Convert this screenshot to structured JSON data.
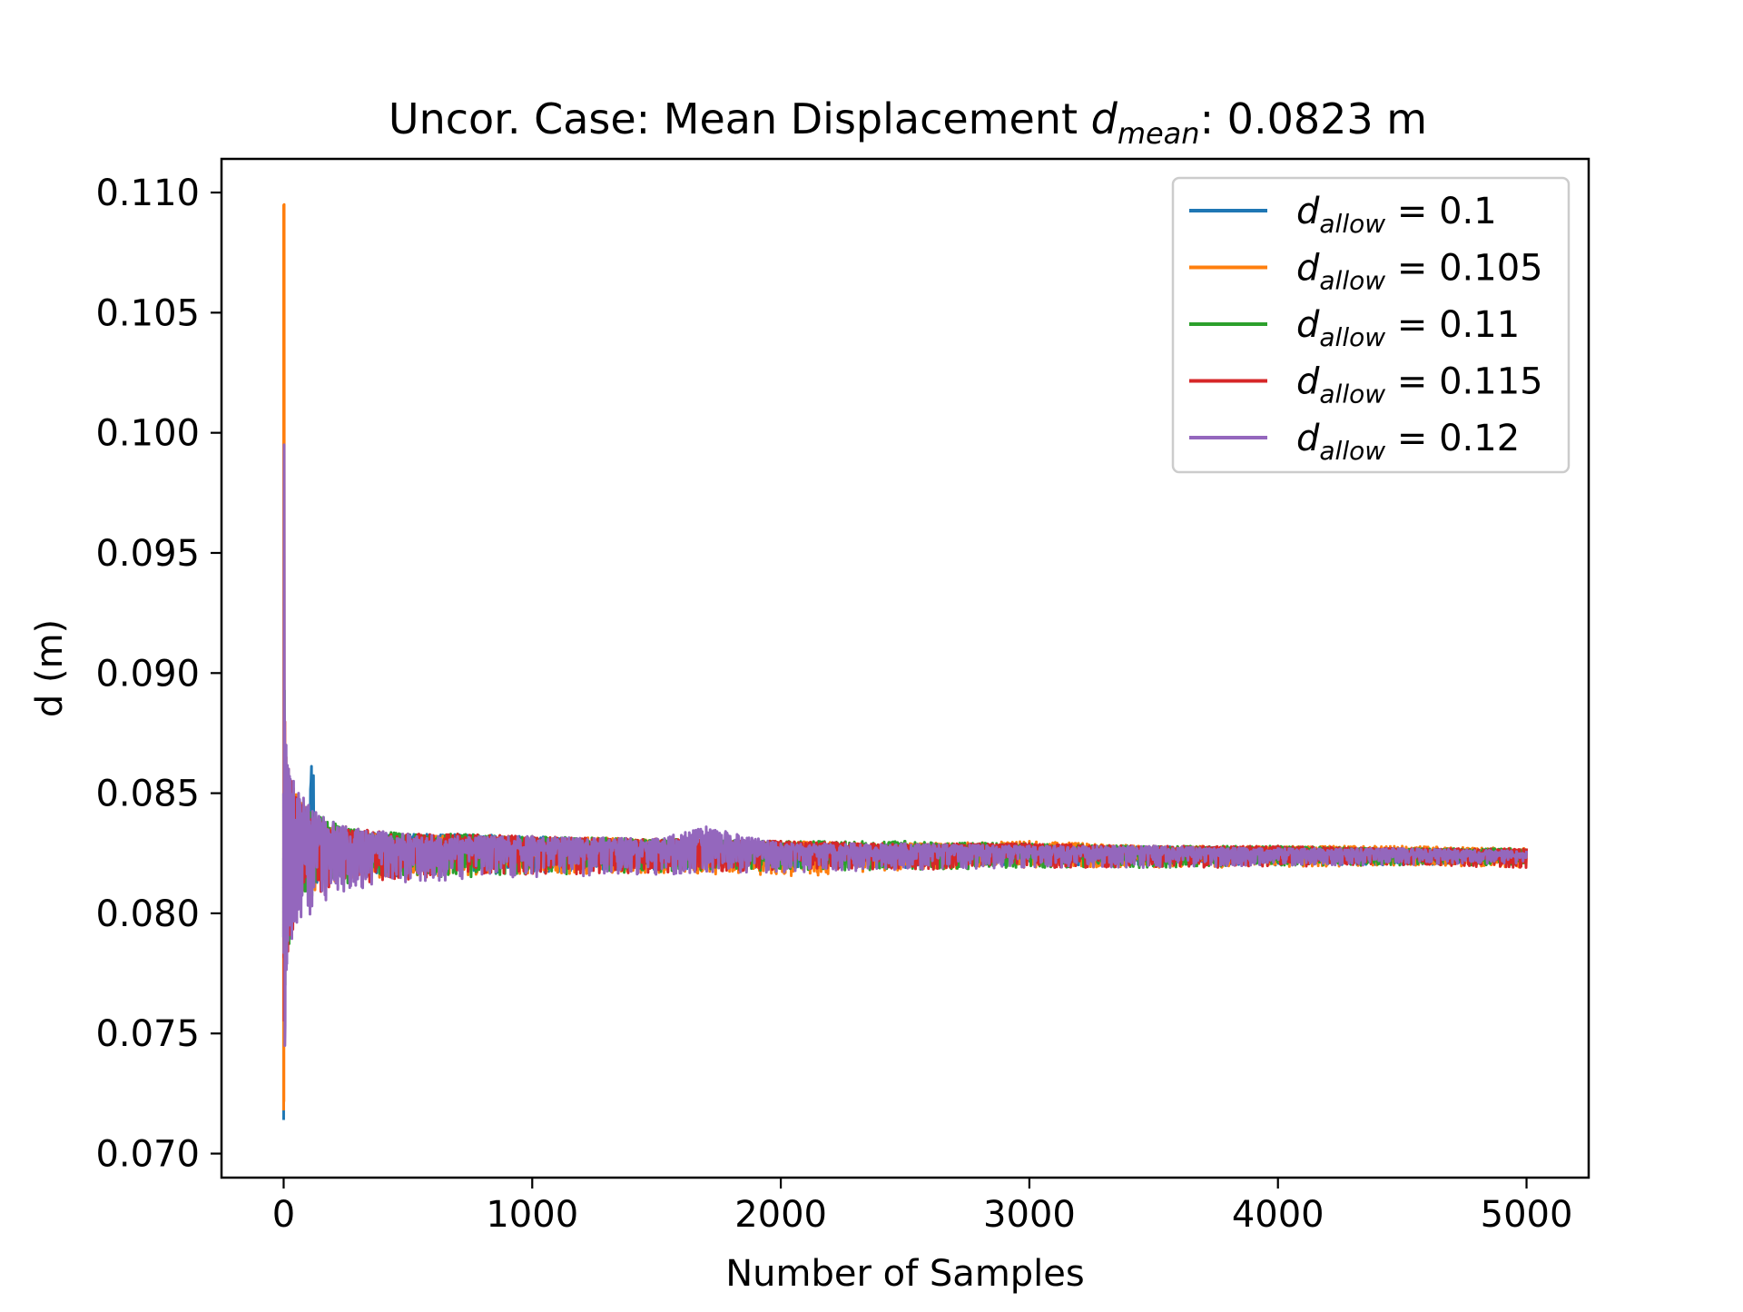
{
  "chart_data": {
    "type": "line",
    "title": {
      "prefix": "Uncor. Case: Mean Displacement ",
      "symbol": "d",
      "subscript": "mean",
      "suffix": ": 0.0823 m"
    },
    "xlabel": "Number of Samples",
    "ylabel": "d (m)",
    "xlim": [
      -250,
      5250
    ],
    "ylim": [
      0.069,
      0.1114
    ],
    "xticks": [
      0,
      1000,
      2000,
      3000,
      4000,
      5000
    ],
    "xtick_labels": [
      "0",
      "1000",
      "2000",
      "3000",
      "4000",
      "5000"
    ],
    "yticks": [
      0.07,
      0.075,
      0.08,
      0.085,
      0.09,
      0.095,
      0.1,
      0.105,
      0.11
    ],
    "ytick_labels": [
      "0.070",
      "0.075",
      "0.080",
      "0.085",
      "0.090",
      "0.095",
      "0.100",
      "0.105",
      "0.110"
    ],
    "grid": false,
    "legend_position": "top-right",
    "converged_value": 0.0823,
    "n_samples": 5000,
    "series": [
      {
        "legend_symbol": "d",
        "legend_subscript": "allow",
        "legend_value": " = 0.1",
        "color": "#1f77b4",
        "x": [
          0,
          3,
          6,
          10,
          20,
          40,
          60,
          80,
          100,
          115,
          130,
          160,
          200,
          250,
          300,
          400,
          500,
          700,
          1000,
          1500,
          2000,
          2500,
          3000,
          3500,
          4000,
          4500,
          5000
        ],
        "upper": [
          0.076,
          0.087,
          0.086,
          0.085,
          0.0848,
          0.0845,
          0.0842,
          0.084,
          0.084,
          0.0868,
          0.0838,
          0.0836,
          0.0835,
          0.0834,
          0.0834,
          0.0833,
          0.0833,
          0.0833,
          0.0832,
          0.083,
          0.0829,
          0.0828,
          0.0828,
          0.0828,
          0.0827,
          0.0827,
          0.0826
        ],
        "lower": [
          0.0714,
          0.0745,
          0.0785,
          0.0795,
          0.08,
          0.0805,
          0.0806,
          0.0808,
          0.0809,
          0.081,
          0.0811,
          0.0812,
          0.0813,
          0.0814,
          0.0814,
          0.0815,
          0.0815,
          0.0816,
          0.0817,
          0.0818,
          0.0819,
          0.0819,
          0.082,
          0.082,
          0.082,
          0.082,
          0.0821
        ]
      },
      {
        "legend_symbol": "d",
        "legend_subscript": "allow",
        "legend_value": " = 0.105",
        "color": "#ff7f0e",
        "x": [
          0,
          2,
          4,
          8,
          20,
          40,
          60,
          80,
          100,
          130,
          160,
          200,
          250,
          300,
          400,
          500,
          700,
          1000,
          1500,
          2000,
          2500,
          3000,
          3500,
          4000,
          4500,
          5000
        ],
        "upper": [
          0.1095,
          0.1095,
          0.088,
          0.087,
          0.0858,
          0.0852,
          0.0848,
          0.0845,
          0.0843,
          0.084,
          0.0838,
          0.0836,
          0.0835,
          0.0834,
          0.0833,
          0.0833,
          0.0832,
          0.0832,
          0.0831,
          0.083,
          0.0829,
          0.083,
          0.0828,
          0.0828,
          0.0828,
          0.0827
        ],
        "lower": [
          0.0718,
          0.072,
          0.076,
          0.079,
          0.0797,
          0.0802,
          0.0805,
          0.0807,
          0.0808,
          0.081,
          0.0811,
          0.0812,
          0.0813,
          0.0814,
          0.0815,
          0.0815,
          0.0816,
          0.0816,
          0.0817,
          0.0815,
          0.0818,
          0.0819,
          0.0819,
          0.0819,
          0.082,
          0.0819
        ]
      },
      {
        "legend_symbol": "d",
        "legend_subscript": "allow",
        "legend_value": " = 0.11",
        "color": "#2ca02c",
        "x": [
          0,
          3,
          6,
          10,
          20,
          30,
          50,
          70,
          100,
          130,
          160,
          200,
          250,
          300,
          400,
          500,
          700,
          1000,
          1500,
          2000,
          2500,
          3000,
          3500,
          4000,
          4500,
          5000
        ],
        "upper": [
          0.085,
          0.0893,
          0.087,
          0.086,
          0.0855,
          0.085,
          0.0847,
          0.0845,
          0.0843,
          0.0841,
          0.084,
          0.0838,
          0.0836,
          0.0835,
          0.0834,
          0.0833,
          0.0833,
          0.0832,
          0.0831,
          0.083,
          0.083,
          0.0829,
          0.0828,
          0.0828,
          0.0827,
          0.0827
        ],
        "lower": [
          0.079,
          0.078,
          0.077,
          0.0775,
          0.0785,
          0.0792,
          0.0798,
          0.0802,
          0.0804,
          0.0806,
          0.0808,
          0.081,
          0.0811,
          0.0812,
          0.0813,
          0.0814,
          0.0815,
          0.0816,
          0.0817,
          0.0818,
          0.0818,
          0.0819,
          0.0819,
          0.082,
          0.082,
          0.082
        ]
      },
      {
        "legend_symbol": "d",
        "legend_subscript": "allow",
        "legend_value": " = 0.115",
        "color": "#d62728",
        "x": [
          0,
          2,
          5,
          10,
          20,
          30,
          50,
          70,
          100,
          130,
          160,
          200,
          250,
          300,
          400,
          500,
          700,
          1000,
          1500,
          2000,
          2500,
          3000,
          3500,
          4000,
          4500,
          5000
        ],
        "upper": [
          0.085,
          0.0875,
          0.088,
          0.0865,
          0.086,
          0.0855,
          0.0848,
          0.0845,
          0.0842,
          0.084,
          0.0838,
          0.0837,
          0.0836,
          0.0835,
          0.0834,
          0.0833,
          0.0833,
          0.0832,
          0.0831,
          0.083,
          0.0829,
          0.0829,
          0.0828,
          0.0828,
          0.0827,
          0.0827
        ],
        "lower": [
          0.079,
          0.0755,
          0.076,
          0.077,
          0.078,
          0.079,
          0.0797,
          0.0801,
          0.0804,
          0.0806,
          0.0808,
          0.081,
          0.0811,
          0.0812,
          0.0813,
          0.0814,
          0.0815,
          0.0816,
          0.0817,
          0.0818,
          0.0818,
          0.0819,
          0.0819,
          0.0819,
          0.082,
          0.0819
        ]
      },
      {
        "legend_symbol": "d",
        "legend_subscript": "allow",
        "legend_value": " = 0.12",
        "color": "#9467bd",
        "x": [
          0,
          2,
          5,
          10,
          20,
          40,
          60,
          80,
          100,
          130,
          160,
          200,
          250,
          300,
          400,
          500,
          700,
          1000,
          1500,
          1700,
          2000,
          2500,
          3000,
          3500,
          4000,
          4500,
          5000
        ],
        "upper": [
          0.085,
          0.0995,
          0.089,
          0.087,
          0.086,
          0.0855,
          0.085,
          0.0848,
          0.0845,
          0.0842,
          0.084,
          0.0838,
          0.0836,
          0.0835,
          0.0834,
          0.0833,
          0.0832,
          0.0832,
          0.0831,
          0.0836,
          0.0829,
          0.0829,
          0.0828,
          0.0828,
          0.0827,
          0.0827,
          0.0826
        ],
        "lower": [
          0.079,
          0.075,
          0.0745,
          0.0775,
          0.0785,
          0.079,
          0.0795,
          0.0797,
          0.0799,
          0.0801,
          0.0803,
          0.0806,
          0.0808,
          0.081,
          0.0812,
          0.0813,
          0.0814,
          0.0815,
          0.0816,
          0.0817,
          0.0817,
          0.0818,
          0.0819,
          0.0819,
          0.082,
          0.082,
          0.0821
        ]
      }
    ]
  }
}
